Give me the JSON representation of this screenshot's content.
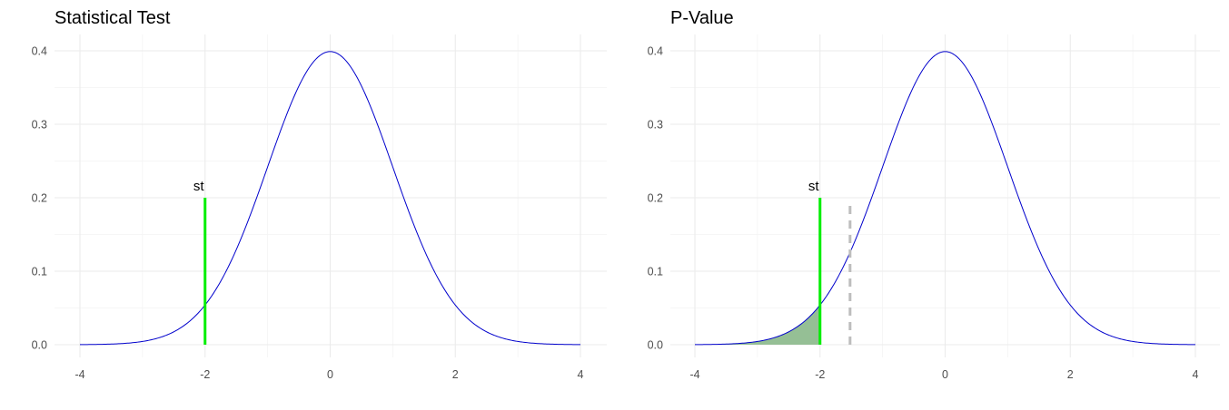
{
  "chart_data": [
    {
      "type": "line",
      "title": "Statistical Test",
      "xlabel": "",
      "ylabel": "",
      "xlim": [
        -4,
        4
      ],
      "ylim": [
        0,
        0.4
      ],
      "x_ticks": [
        -4,
        -2,
        0,
        2,
        4
      ],
      "x_tick_labels": [
        "-4",
        "-2",
        "0",
        "2",
        "4"
      ],
      "y_ticks": [
        0,
        0.1,
        0.2,
        0.3,
        0.4
      ],
      "y_tick_labels": [
        "0.0",
        "0.1",
        "0.2",
        "0.3",
        "0.4"
      ],
      "grid": true,
      "series": [
        {
          "curve": "standard-normal-density",
          "x_range": [
            -4,
            4
          ],
          "color": "#0000cc"
        }
      ],
      "statistic_line": {
        "x": -2,
        "y_top": 0.2,
        "color": "#00ee00",
        "label": "st"
      }
    },
    {
      "type": "area",
      "title": "P-Value",
      "xlabel": "",
      "ylabel": "",
      "xlim": [
        -4,
        4
      ],
      "ylim": [
        0,
        0.4
      ],
      "x_ticks": [
        -4,
        -2,
        0,
        2,
        4
      ],
      "x_tick_labels": [
        "-4",
        "-2",
        "0",
        "2",
        "4"
      ],
      "y_ticks": [
        0,
        0.1,
        0.2,
        0.3,
        0.4
      ],
      "y_tick_labels": [
        "0.0",
        "0.1",
        "0.2",
        "0.3",
        "0.4"
      ],
      "grid": true,
      "series": [
        {
          "curve": "standard-normal-density",
          "x_range": [
            -4,
            4
          ],
          "color": "#0000cc"
        }
      ],
      "shaded_region": {
        "x_from": -4,
        "x_to": -2,
        "color": "#8fbc8f"
      },
      "statistic_line": {
        "x": -2,
        "y_top": 0.2,
        "color": "#00ee00",
        "label": "st"
      },
      "critical_line": {
        "x": -1.52,
        "y_top": 0.19,
        "color": "#bdbdbd",
        "style": "dashed"
      }
    }
  ]
}
